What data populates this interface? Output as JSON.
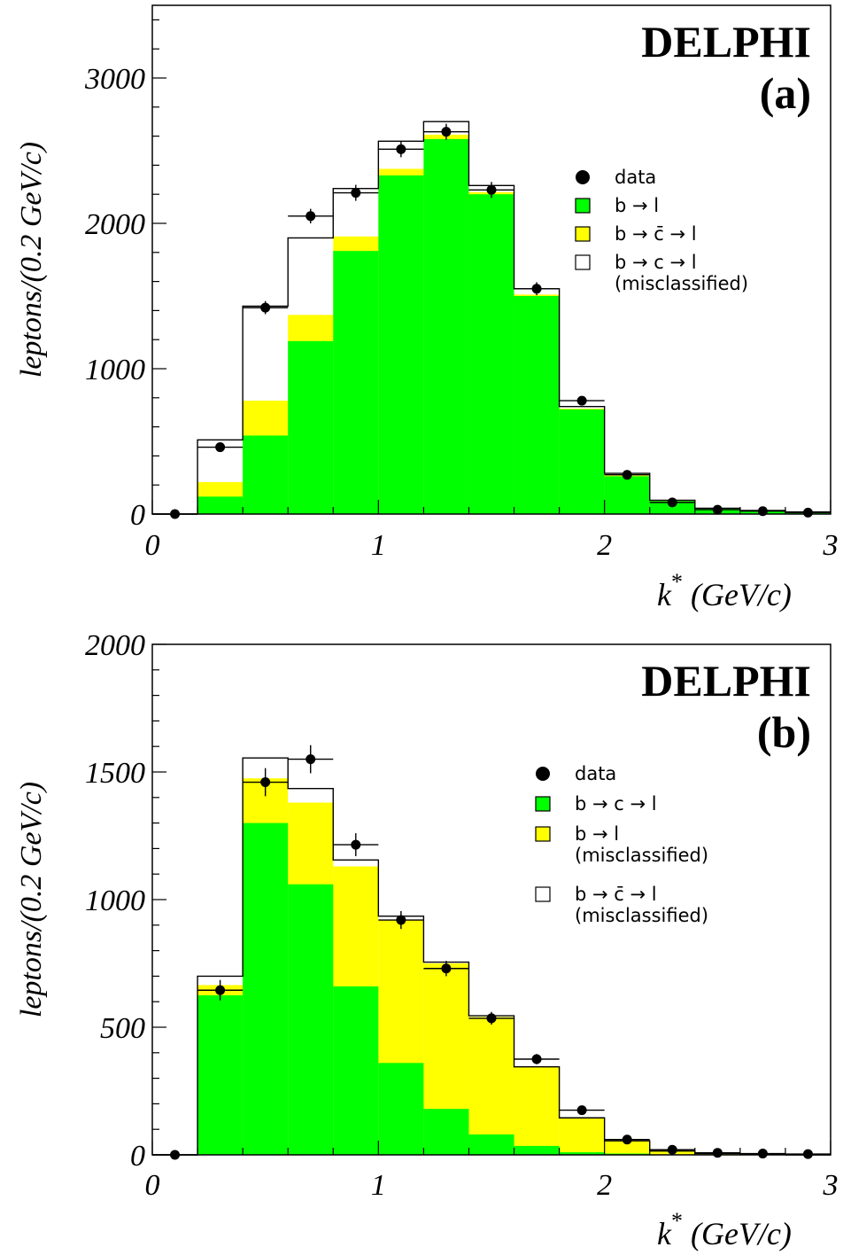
{
  "colors": {
    "green": "#00ff00",
    "yellow": "#ffff00",
    "white": "#ffffff",
    "black": "#000000"
  },
  "chart_data": [
    {
      "id": "a",
      "type": "histogram",
      "label": "(a)",
      "experiment": "DELPHI",
      "xlabel": "k* (GeV/c)",
      "ylabel": "leptons/(0.2 GeV/c)",
      "xlim": [
        0,
        3
      ],
      "ylim": [
        0,
        3500
      ],
      "x_ticks": [
        "0",
        "1",
        "2",
        "3"
      ],
      "y_ticks": [
        "0",
        "1000",
        "2000",
        "3000"
      ],
      "bin_edges": [
        0,
        0.2,
        0.4,
        0.6,
        0.8,
        1.0,
        1.2,
        1.4,
        1.6,
        1.8,
        2.0,
        2.2,
        2.4,
        2.6,
        2.8,
        3.0
      ],
      "stack": [
        {
          "name": "b → l",
          "color": "#00ff00",
          "values": [
            0,
            120,
            540,
            1190,
            1810,
            2330,
            2580,
            2200,
            1500,
            720,
            260,
            90,
            40,
            25,
            15
          ]
        },
        {
          "name": "b → c̄ → l",
          "color": "#ffff00",
          "values": [
            0,
            100,
            240,
            180,
            100,
            45,
            30,
            15,
            10,
            5,
            5,
            0,
            0,
            0,
            0
          ]
        },
        {
          "name": "b → c → l (misclassified)",
          "color": "#ffffff",
          "values": [
            0,
            290,
            650,
            530,
            330,
            190,
            90,
            45,
            40,
            15,
            15,
            5,
            0,
            0,
            0
          ]
        }
      ],
      "data": {
        "name": "data",
        "x": [
          0.1,
          0.3,
          0.5,
          0.7,
          0.9,
          1.1,
          1.3,
          1.5,
          1.7,
          1.9,
          2.1,
          2.3,
          2.5,
          2.7,
          2.9
        ],
        "y": [
          0,
          460,
          1420,
          2050,
          2210,
          2510,
          2630,
          2230,
          1550,
          780,
          270,
          80,
          30,
          20,
          10
        ],
        "err": [
          0,
          30,
          45,
          50,
          55,
          55,
          55,
          55,
          45,
          30,
          18,
          10,
          6,
          5,
          4
        ]
      },
      "legend": [
        {
          "marker": "dot",
          "label": "data"
        },
        {
          "marker": "box",
          "color": "#00ff00",
          "label": "b → l"
        },
        {
          "marker": "box",
          "color": "#ffff00",
          "label": "b → c̄ → l"
        },
        {
          "marker": "box",
          "color": "#ffffff",
          "label": "b → c → l",
          "label2": "(misclassified)"
        }
      ]
    },
    {
      "id": "b",
      "type": "histogram",
      "label": "(b)",
      "experiment": "DELPHI",
      "xlabel": "k* (GeV/c)",
      "ylabel": "leptons/(0.2 GeV/c)",
      "xlim": [
        0,
        3
      ],
      "ylim": [
        0,
        2000
      ],
      "x_ticks": [
        "0",
        "1",
        "2",
        "3"
      ],
      "y_ticks": [
        "0",
        "500",
        "1000",
        "1500",
        "2000"
      ],
      "bin_edges": [
        0,
        0.2,
        0.4,
        0.6,
        0.8,
        1.0,
        1.2,
        1.4,
        1.6,
        1.8,
        2.0,
        2.2,
        2.4,
        2.6,
        2.8,
        3.0
      ],
      "stack": [
        {
          "name": "b → c → l",
          "color": "#00ff00",
          "values": [
            0,
            625,
            1300,
            1060,
            660,
            360,
            180,
            80,
            35,
            10,
            5,
            0,
            0,
            0,
            0
          ]
        },
        {
          "name": "b → l (misclassified)",
          "color": "#ffff00",
          "values": [
            0,
            40,
            175,
            320,
            470,
            560,
            570,
            460,
            310,
            135,
            50,
            15,
            5,
            2,
            0
          ]
        },
        {
          "name": "b → c̄ → l (misclassified)",
          "color": "#ffffff",
          "values": [
            0,
            35,
            80,
            55,
            25,
            15,
            5,
            5,
            0,
            0,
            0,
            0,
            0,
            0,
            0
          ]
        }
      ],
      "data": {
        "name": "data",
        "x": [
          0.1,
          0.3,
          0.5,
          0.7,
          0.9,
          1.1,
          1.3,
          1.5,
          1.7,
          1.9,
          2.1,
          2.3,
          2.5,
          2.7,
          2.9
        ],
        "y": [
          0,
          645,
          1460,
          1550,
          1215,
          920,
          730,
          535,
          375,
          175,
          60,
          20,
          8,
          5,
          3
        ],
        "err": [
          0,
          40,
          55,
          55,
          45,
          35,
          30,
          25,
          20,
          12,
          8,
          5,
          3,
          2,
          2
        ]
      },
      "legend": [
        {
          "marker": "dot",
          "label": "data"
        },
        {
          "marker": "box",
          "color": "#00ff00",
          "label": "b → c → l"
        },
        {
          "marker": "box",
          "color": "#ffff00",
          "label": "b → l",
          "label2": "(misclassified)"
        },
        {
          "marker": "box",
          "color": "#ffffff",
          "label": "b → c̄ → l",
          "label2": "(misclassified)"
        }
      ]
    }
  ]
}
